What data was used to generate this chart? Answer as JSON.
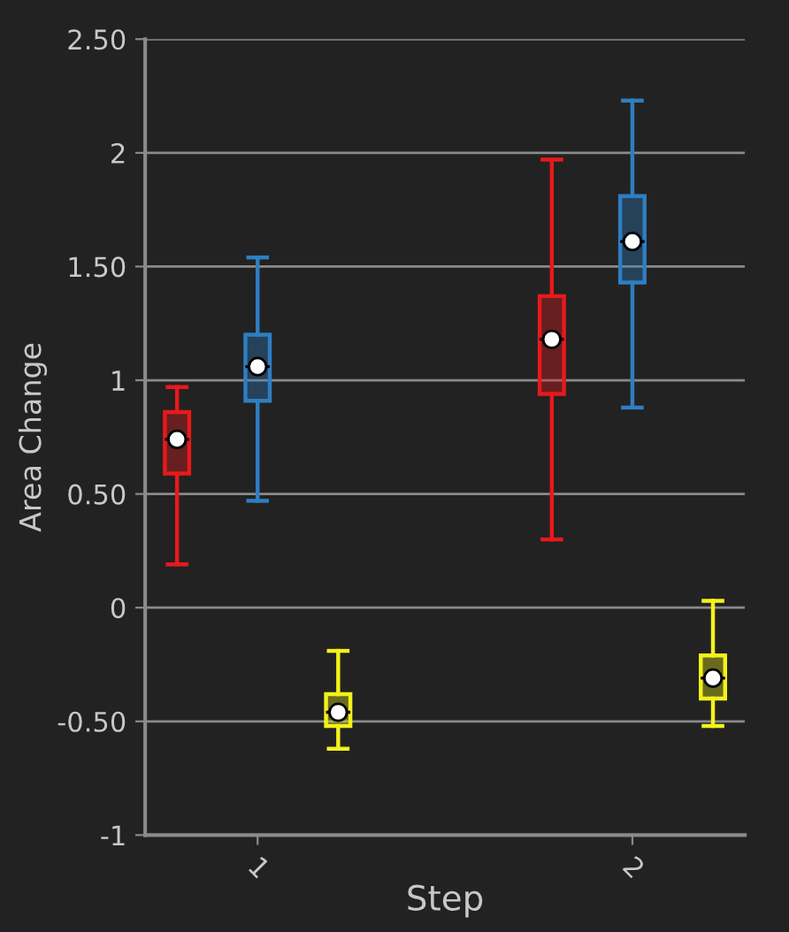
{
  "chart_data": {
    "type": "box",
    "xlabel": "Step",
    "ylabel": "Area Change",
    "categories": [
      "1",
      "2"
    ],
    "series": [
      {
        "color": "#e8191c",
        "boxes": [
          {
            "low": 0.19,
            "q1": 0.59,
            "median": 0.74,
            "q3": 0.86,
            "high": 0.97,
            "mean": 0.74
          },
          {
            "low": 0.3,
            "q1": 0.94,
            "median": 1.18,
            "q3": 1.37,
            "high": 1.97,
            "mean": 1.18
          }
        ]
      },
      {
        "color": "#2e7ec2",
        "boxes": [
          {
            "low": 0.47,
            "q1": 0.91,
            "median": 1.06,
            "q3": 1.2,
            "high": 1.54,
            "mean": 1.06
          },
          {
            "low": 0.88,
            "q1": 1.43,
            "median": 1.61,
            "q3": 1.81,
            "high": 2.23,
            "mean": 1.61
          }
        ]
      },
      {
        "color": "#f2f21a",
        "boxes": [
          {
            "low": -0.62,
            "q1": -0.52,
            "median": -0.46,
            "q3": -0.38,
            "high": -0.19,
            "mean": -0.46
          },
          {
            "low": -0.52,
            "q1": -0.4,
            "median": -0.31,
            "q3": -0.21,
            "high": 0.03,
            "mean": -0.31
          }
        ]
      }
    ],
    "ylim": [
      -1,
      2.5
    ],
    "yticks": [
      -1,
      {
        "value": -0.5,
        "label": "-0.50"
      },
      0,
      {
        "value": 0.5,
        "label": "0.50"
      },
      1,
      {
        "value": 1.5,
        "label": "1.50"
      },
      2,
      {
        "value": 2.5,
        "label": "2.50"
      }
    ],
    "grid": "y",
    "legend": false
  }
}
